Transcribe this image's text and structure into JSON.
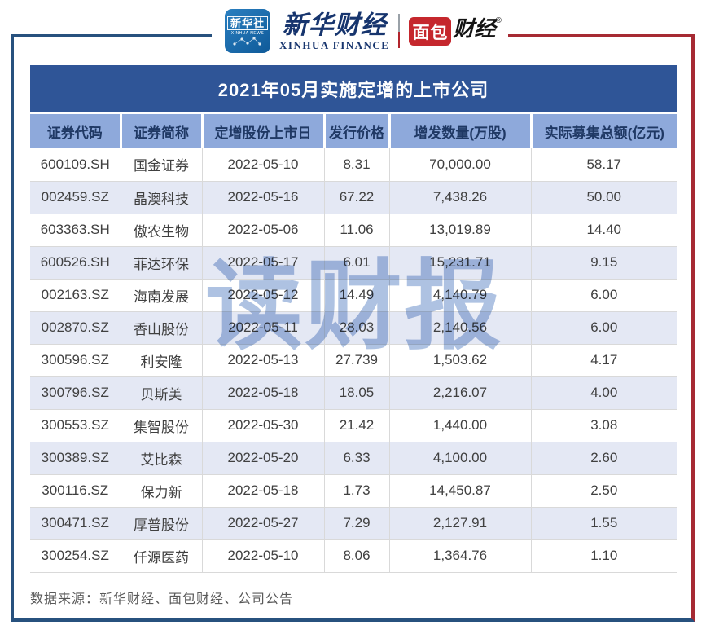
{
  "brand": {
    "xinhua_news": {
      "cn": "新华社",
      "en": "XINHUA NEWS"
    },
    "xinhua_finance": {
      "cn": "新华财经",
      "en": "XINHUA FINANCE"
    },
    "mianbao_finance": {
      "boxed": "面包",
      "rest": "财经",
      "reg": "®"
    }
  },
  "title": "2021年05月实施定增的上市公司",
  "table": {
    "headers": [
      "证券代码",
      "证券简称",
      "定增股份上市日",
      "发行价格",
      "增发数量(万股)",
      "实际募集总额(亿元)"
    ],
    "rows": [
      [
        "600109.SH",
        "国金证券",
        "2022-05-10",
        "8.31",
        "70,000.00",
        "58.17"
      ],
      [
        "002459.SZ",
        "晶澳科技",
        "2022-05-16",
        "67.22",
        "7,438.26",
        "50.00"
      ],
      [
        "603363.SH",
        "傲农生物",
        "2022-05-06",
        "11.06",
        "13,019.89",
        "14.40"
      ],
      [
        "600526.SH",
        "菲达环保",
        "2022-05-17",
        "6.01",
        "15,231.71",
        "9.15"
      ],
      [
        "002163.SZ",
        "海南发展",
        "2022-05-12",
        "14.49",
        "4,140.79",
        "6.00"
      ],
      [
        "002870.SZ",
        "香山股份",
        "2022-05-11",
        "28.03",
        "2,140.56",
        "6.00"
      ],
      [
        "300596.SZ",
        "利安隆",
        "2022-05-13",
        "27.739",
        "1,503.62",
        "4.17"
      ],
      [
        "300796.SZ",
        "贝斯美",
        "2022-05-18",
        "18.05",
        "2,216.07",
        "4.00"
      ],
      [
        "300553.SZ",
        "集智股份",
        "2022-05-30",
        "21.42",
        "1,440.00",
        "3.08"
      ],
      [
        "300389.SZ",
        "艾比森",
        "2022-05-20",
        "6.33",
        "4,100.00",
        "2.60"
      ],
      [
        "300116.SZ",
        "保力新",
        "2022-05-18",
        "1.73",
        "14,450.87",
        "2.50"
      ],
      [
        "300471.SZ",
        "厚普股份",
        "2022-05-27",
        "7.29",
        "2,127.91",
        "1.55"
      ],
      [
        "300254.SZ",
        "仟源医药",
        "2022-05-10",
        "8.06",
        "1,364.76",
        "1.10"
      ]
    ]
  },
  "chart_data": {
    "type": "table",
    "title": "2021年05月实施定增的上市公司",
    "columns": [
      "证券代码",
      "证券简称",
      "定增股份上市日",
      "发行价格",
      "增发数量(万股)",
      "实际募集总额(亿元)"
    ],
    "rows": [
      [
        "600109.SH",
        "国金证券",
        "2022-05-10",
        8.31,
        70000.0,
        58.17
      ],
      [
        "002459.SZ",
        "晶澳科技",
        "2022-05-16",
        67.22,
        7438.26,
        50.0
      ],
      [
        "603363.SH",
        "傲农生物",
        "2022-05-06",
        11.06,
        13019.89,
        14.4
      ],
      [
        "600526.SH",
        "菲达环保",
        "2022-05-17",
        6.01,
        15231.71,
        9.15
      ],
      [
        "002163.SZ",
        "海南发展",
        "2022-05-12",
        14.49,
        4140.79,
        6.0
      ],
      [
        "002870.SZ",
        "香山股份",
        "2022-05-11",
        28.03,
        2140.56,
        6.0
      ],
      [
        "300596.SZ",
        "利安隆",
        "2022-05-13",
        27.739,
        1503.62,
        4.17
      ],
      [
        "300796.SZ",
        "贝斯美",
        "2022-05-18",
        18.05,
        2216.07,
        4.0
      ],
      [
        "300553.SZ",
        "集智股份",
        "2022-05-30",
        21.42,
        1440.0,
        3.08
      ],
      [
        "300389.SZ",
        "艾比森",
        "2022-05-20",
        6.33,
        4100.0,
        2.6
      ],
      [
        "300116.SZ",
        "保力新",
        "2022-05-18",
        1.73,
        14450.87,
        2.5
      ],
      [
        "300471.SZ",
        "厚普股份",
        "2022-05-27",
        7.29,
        2127.91,
        1.55
      ],
      [
        "300254.SZ",
        "仟源医药",
        "2022-05-10",
        8.06,
        1364.76,
        1.1
      ]
    ]
  },
  "watermark": {
    "text": "读财报"
  },
  "footer": {
    "text": "数据来源：新华财经、面包财经、公司公告"
  },
  "colors": {
    "title_bar": "#2F5597",
    "header_row_bg": "#8EA9DB",
    "header_text": "#1F3864",
    "alt_row_bg": "#E4E8F4",
    "frame_navy": "#27517E",
    "frame_red": "#A62A33",
    "brand_red": "#C5272D",
    "watermark_blue": "#AEC2E2"
  }
}
